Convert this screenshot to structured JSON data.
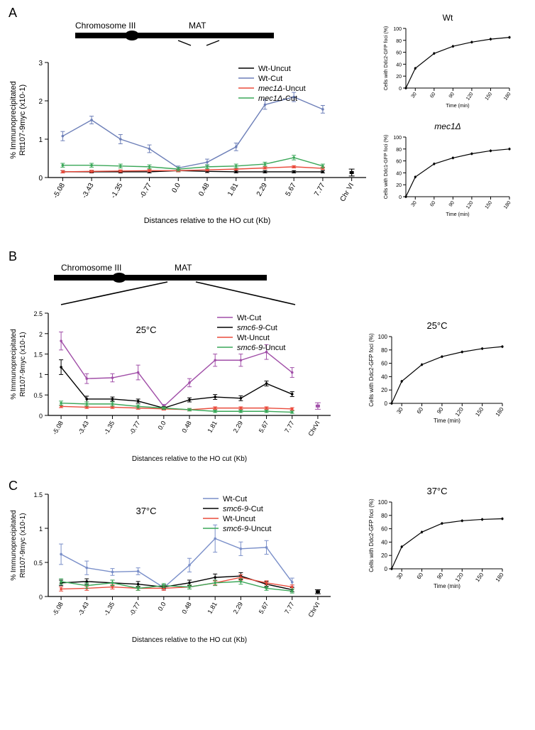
{
  "panelA": {
    "label": "A",
    "chromosome": {
      "label_chr": "Chromosome III",
      "label_mat": "MAT"
    },
    "chart": {
      "type": "line",
      "ylabel": "% Immunoprecipitated\nRtt107-9myc (x10-1)",
      "xlabel": "Distances relative to the HO cut (Kb)",
      "xcats": [
        "-5.08",
        "-3.43",
        "-1.35",
        "-0.77",
        "0.0",
        "0.48",
        "1.81",
        "2.29",
        "5.67",
        "7.77",
        "Chr VI"
      ],
      "ylim": [
        0,
        3
      ],
      "ytick_step": 1,
      "label_fontsize": 11,
      "tick_fontsize": 10,
      "grid_color": "#ffffff",
      "background_color": "#ffffff",
      "axis_color": "#000000",
      "series": [
        {
          "name": "Wt-Uncut",
          "color": "#000000",
          "values": [
            0.15,
            0.15,
            0.15,
            0.15,
            0.18,
            0.16,
            0.15,
            0.15,
            0.15,
            0.15
          ],
          "err": [
            0.03,
            0.03,
            0.03,
            0.03,
            0.03,
            0.03,
            0.03,
            0.03,
            0.03,
            0.03
          ]
        },
        {
          "name": "Wt-Cut",
          "color": "#6d7fb8",
          "values": [
            1.08,
            1.5,
            1.0,
            0.75,
            0.25,
            0.4,
            0.8,
            1.9,
            2.1,
            1.78
          ],
          "err": [
            0.12,
            0.1,
            0.12,
            0.1,
            0.05,
            0.08,
            0.1,
            0.12,
            0.12,
            0.1
          ]
        },
        {
          "name": "mec1Δ-Uncut",
          "italic": true,
          "color": "#ea4b3c",
          "values": [
            0.15,
            0.16,
            0.17,
            0.18,
            0.18,
            0.2,
            0.22,
            0.25,
            0.28,
            0.24
          ],
          "err": [
            0.03,
            0.03,
            0.03,
            0.03,
            0.03,
            0.03,
            0.03,
            0.03,
            0.03,
            0.03
          ]
        },
        {
          "name": "mec1Δ-Cut",
          "italic": true,
          "color": "#3aa758",
          "values": [
            0.32,
            0.32,
            0.3,
            0.28,
            0.22,
            0.28,
            0.3,
            0.35,
            0.52,
            0.3
          ],
          "err": [
            0.05,
            0.05,
            0.05,
            0.05,
            0.05,
            0.05,
            0.05,
            0.05,
            0.06,
            0.05
          ]
        }
      ],
      "chrVI": {
        "value": 0.13,
        "err": 0.09,
        "color": "#000000"
      }
    },
    "side": [
      {
        "title": "Wt",
        "type": "line",
        "ylabel": "Cells with Ddc2-GFP foci (%)",
        "xlabel": "Time (min)",
        "xticks": [
          30,
          60,
          90,
          120,
          150,
          180
        ],
        "ylim": [
          0,
          100
        ],
        "ytick": [
          0,
          20,
          40,
          60,
          80,
          100
        ],
        "tick_fontsize": 7,
        "label_fontsize": 7,
        "series": {
          "color": "#000000",
          "x": [
            15,
            30,
            60,
            90,
            120,
            150,
            180
          ],
          "y": [
            0,
            33,
            58,
            70,
            77,
            82,
            85
          ]
        }
      },
      {
        "title": "mec1Δ",
        "title_italic": true,
        "type": "line",
        "ylabel": "Cells with Ddc1-GFP foci (%)",
        "xlabel": "Time (min)",
        "xticks": [
          30,
          60,
          90,
          120,
          150,
          180
        ],
        "ylim": [
          0,
          100
        ],
        "ytick": [
          0,
          20,
          40,
          60,
          80,
          100
        ],
        "tick_fontsize": 7,
        "label_fontsize": 7,
        "series": {
          "color": "#000000",
          "x": [
            15,
            30,
            60,
            90,
            120,
            150,
            180
          ],
          "y": [
            0,
            33,
            55,
            65,
            72,
            77,
            80
          ]
        }
      }
    ]
  },
  "panelB": {
    "label": "B",
    "chromosome": {
      "label_chr": "Chromosome III",
      "label_mat": "MAT"
    },
    "temp_label": "25°C",
    "chart": {
      "type": "line",
      "ylabel": "% Immunoprecipitated\nRtt107-9myc (x10-1)",
      "xlabel": "Distances relative to the HO cut (Kb)",
      "xcats": [
        "-5.08",
        "-3.43",
        "-1.35",
        "-0.77",
        "0.0",
        "0.48",
        "1.81",
        "2.29",
        "5.67",
        "7.77",
        "ChrVI"
      ],
      "ylim": [
        0,
        2.5
      ],
      "ytick_step": 0.5,
      "label_fontsize": 10,
      "tick_fontsize": 9,
      "axis_color": "#000000",
      "legend_order": [
        "Wt-Cut",
        "smc6-9-Cut",
        "Wt-Uncut",
        "smc6-9-Uncut"
      ],
      "series": [
        {
          "name": "Wt-Cut",
          "color": "#a14fa8",
          "values": [
            1.82,
            0.9,
            0.92,
            1.05,
            0.22,
            0.8,
            1.35,
            1.35,
            1.55,
            1.05
          ],
          "err": [
            0.22,
            0.12,
            0.1,
            0.18,
            0.05,
            0.1,
            0.15,
            0.15,
            0.18,
            0.12
          ]
        },
        {
          "name": "smc6-9-Cut",
          "italic": true,
          "color": "#000000",
          "values": [
            1.18,
            0.4,
            0.4,
            0.35,
            0.18,
            0.38,
            0.45,
            0.42,
            0.78,
            0.52
          ],
          "err": [
            0.18,
            0.07,
            0.05,
            0.05,
            0.04,
            0.05,
            0.06,
            0.06,
            0.06,
            0.06
          ]
        },
        {
          "name": "Wt-Uncut",
          "color": "#ea4b3c",
          "values": [
            0.22,
            0.2,
            0.2,
            0.18,
            0.16,
            0.14,
            0.18,
            0.18,
            0.18,
            0.16
          ],
          "err": [
            0.03,
            0.03,
            0.03,
            0.03,
            0.03,
            0.03,
            0.03,
            0.03,
            0.03,
            0.03
          ]
        },
        {
          "name": "smc6-9-Uncut",
          "italic": true,
          "color": "#3aa758",
          "values": [
            0.3,
            0.28,
            0.28,
            0.22,
            0.18,
            0.14,
            0.1,
            0.1,
            0.1,
            0.08
          ],
          "err": [
            0.05,
            0.05,
            0.05,
            0.04,
            0.03,
            0.03,
            0.03,
            0.03,
            0.03,
            0.03
          ]
        }
      ],
      "chrVI": {
        "value": 0.23,
        "err": 0.08,
        "color": "#a14fa8"
      }
    },
    "side": {
      "title": "25°C",
      "type": "line",
      "ylabel": "Cells with Ddc2-GFP foci (%)",
      "xlabel": "Time (min)",
      "xticks": [
        30,
        60,
        90,
        120,
        150,
        180
      ],
      "ylim": [
        0,
        100
      ],
      "ytick": [
        0,
        20,
        40,
        60,
        80,
        100
      ],
      "tick_fontsize": 8,
      "label_fontsize": 8,
      "series": {
        "color": "#000000",
        "x": [
          15,
          30,
          60,
          90,
          120,
          150,
          180
        ],
        "y": [
          0,
          33,
          58,
          70,
          77,
          82,
          85
        ]
      }
    }
  },
  "panelC": {
    "label": "C",
    "temp_label": "37°C",
    "chart": {
      "type": "line",
      "ylabel": "% Immunoprecipitated\nRtt107-9myc (x10-1)",
      "xlabel": "Distances relative to the HO cut (Kb)",
      "xcats": [
        "-5.08",
        "-3.43",
        "-1.35",
        "-0.77",
        "0.0",
        "0.48",
        "1.81",
        "2.29",
        "5.67",
        "7.77",
        "ChrVI"
      ],
      "ylim": [
        0,
        1.5
      ],
      "ytick_step": 0.5,
      "label_fontsize": 10,
      "tick_fontsize": 9,
      "axis_color": "#000000",
      "legend_order": [
        "Wt-Cut",
        "smc6-9-Cut",
        "Wt-Uncut",
        "smc6-9-Uncut"
      ],
      "series": [
        {
          "name": "Wt-Cut",
          "color": "#7a8fc9",
          "values": [
            0.62,
            0.42,
            0.36,
            0.37,
            0.13,
            0.46,
            0.85,
            0.7,
            0.72,
            0.21
          ],
          "err": [
            0.15,
            0.1,
            0.05,
            0.05,
            0.04,
            0.1,
            0.2,
            0.1,
            0.1,
            0.06
          ]
        },
        {
          "name": "smc6-9-Cut",
          "italic": true,
          "color": "#000000",
          "values": [
            0.2,
            0.22,
            0.2,
            0.18,
            0.14,
            0.2,
            0.28,
            0.3,
            0.18,
            0.1
          ],
          "err": [
            0.04,
            0.04,
            0.04,
            0.04,
            0.03,
            0.04,
            0.05,
            0.05,
            0.04,
            0.03
          ]
        },
        {
          "name": "Wt-Uncut",
          "color": "#ea4b3c",
          "values": [
            0.11,
            0.12,
            0.14,
            0.12,
            0.12,
            0.14,
            0.2,
            0.28,
            0.2,
            0.14
          ],
          "err": [
            0.03,
            0.03,
            0.03,
            0.03,
            0.03,
            0.03,
            0.03,
            0.04,
            0.03,
            0.03
          ]
        },
        {
          "name": "smc6-9-Uncut",
          "italic": true,
          "color": "#3aa758",
          "values": [
            0.22,
            0.16,
            0.2,
            0.12,
            0.16,
            0.14,
            0.2,
            0.22,
            0.12,
            0.08
          ],
          "err": [
            0.04,
            0.04,
            0.04,
            0.03,
            0.03,
            0.03,
            0.04,
            0.04,
            0.03,
            0.03
          ]
        }
      ],
      "chrVI": {
        "value": 0.07,
        "err": 0.03,
        "color": "#000000"
      }
    },
    "side": {
      "title": "37°C",
      "type": "line",
      "ylabel": "Cells with Ddc2-GFP foci (%)",
      "xlabel": "Time (min)",
      "xticks": [
        30,
        60,
        90,
        120,
        150,
        180
      ],
      "ylim": [
        0,
        100
      ],
      "ytick": [
        0,
        20,
        40,
        60,
        80,
        100
      ],
      "tick_fontsize": 8,
      "label_fontsize": 8,
      "series": {
        "color": "#000000",
        "x": [
          15,
          30,
          60,
          90,
          120,
          150,
          180
        ],
        "y": [
          0,
          33,
          55,
          68,
          72,
          74,
          75
        ]
      }
    }
  }
}
